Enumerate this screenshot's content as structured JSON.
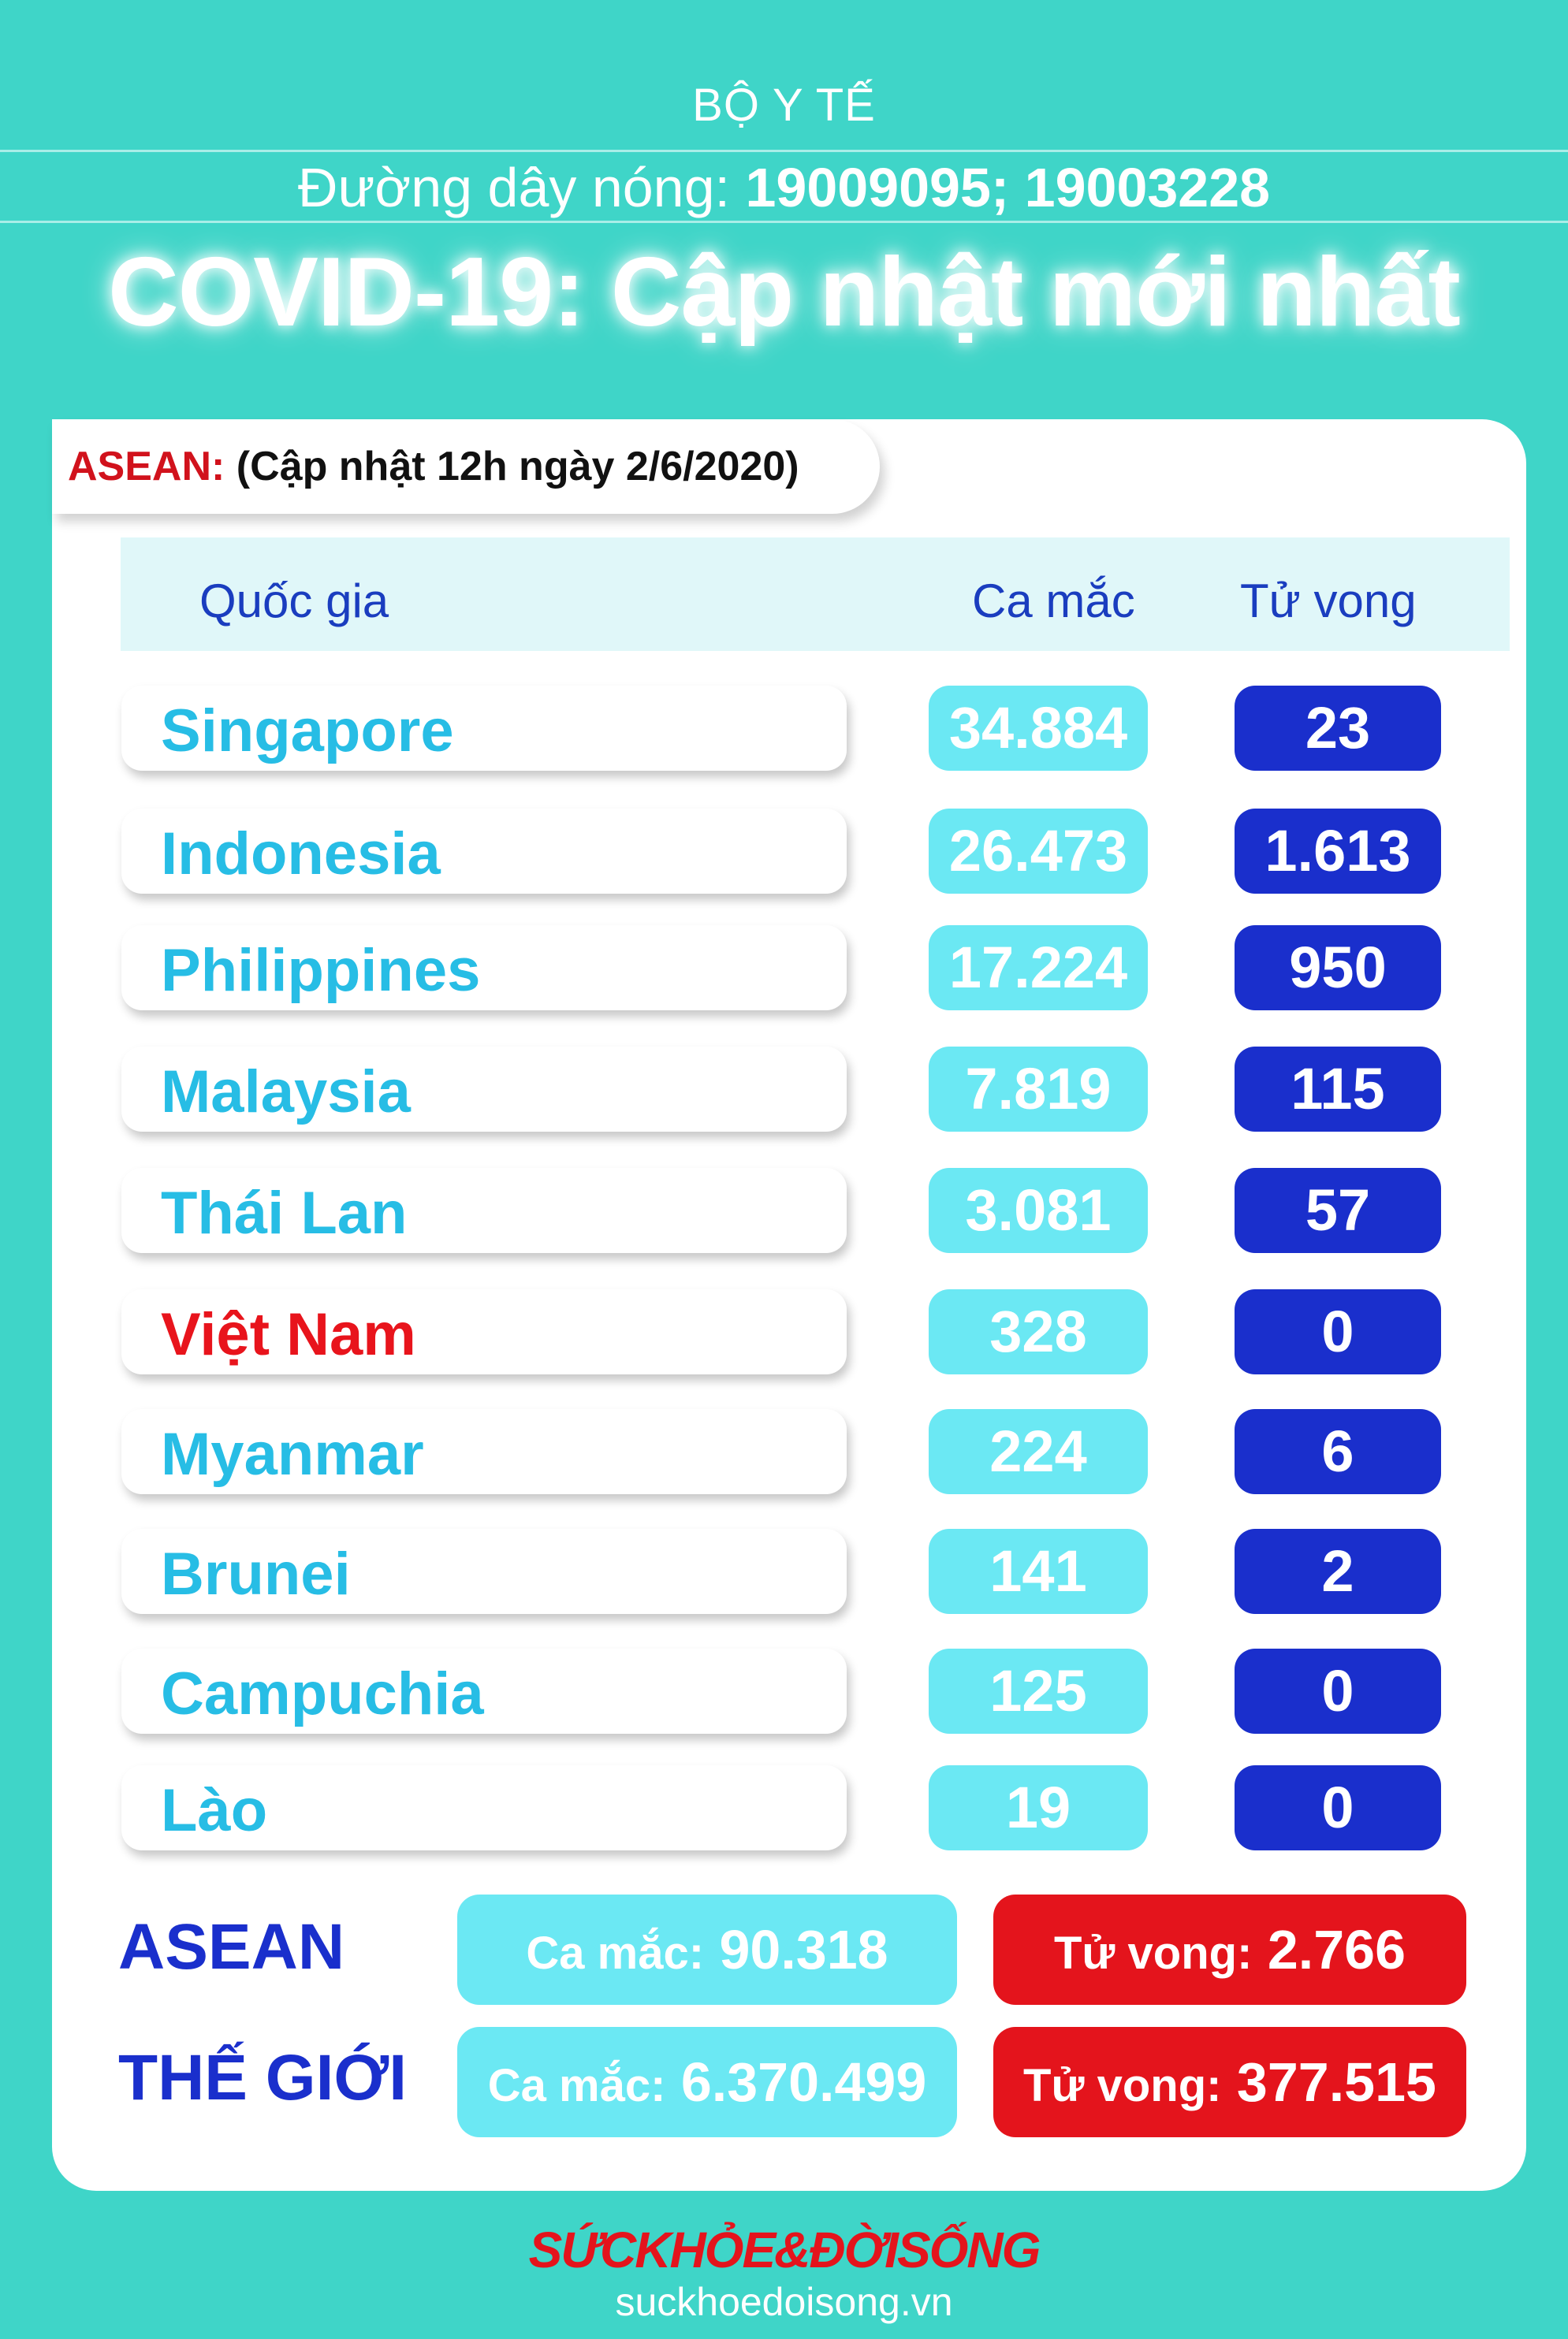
{
  "header": {
    "agency": "BỘ Y TẾ",
    "hotline_label": "Đường dây nóng:",
    "hotline_numbers": "19009095; 19003228",
    "title": "COVID-19: Cập nhật mới nhất"
  },
  "update": {
    "region": "ASEAN:",
    "text": "(Cập nhật 12h ngày 2/6/2020)"
  },
  "table": {
    "headers": {
      "country": "Quốc gia",
      "cases": "Ca mắc",
      "deaths": "Tử vong"
    },
    "rows": [
      {
        "country": "Singapore",
        "cases": "34.884",
        "deaths": "23"
      },
      {
        "country": "Indonesia",
        "cases": "26.473",
        "deaths": "1.613"
      },
      {
        "country": "Philippines",
        "cases": "17.224",
        "deaths": "950"
      },
      {
        "country": "Malaysia",
        "cases": "7.819",
        "deaths": "115"
      },
      {
        "country": "Thái Lan",
        "cases": "3.081",
        "deaths": "57"
      },
      {
        "country": "Việt Nam",
        "cases": "328",
        "deaths": "0",
        "highlight": "#e8141c"
      },
      {
        "country": "Myanmar",
        "cases": "224",
        "deaths": "6"
      },
      {
        "country": "Brunei",
        "cases": "141",
        "deaths": "2"
      },
      {
        "country": "Campuchia",
        "cases": "125",
        "deaths": "0"
      },
      {
        "country": "Lào",
        "cases": "19",
        "deaths": "0"
      }
    ]
  },
  "summary": {
    "asean": {
      "label": "ASEAN",
      "cases_prefix": "Ca mắc:",
      "cases": "90.318",
      "deaths_prefix": "Tử vong:",
      "deaths": "2.766"
    },
    "world": {
      "label": "THẾ GIỚI",
      "cases_prefix": "Ca mắc:",
      "cases": "6.370.499",
      "deaths_prefix": "Tử vong:",
      "deaths": "377.515"
    }
  },
  "brand": {
    "logo": "SỨCKHỎE&ĐỜISỐNG",
    "url": "suckhoedoisong.vn"
  },
  "colors": {
    "background": "#3fd5c8",
    "country_text": "#27bde5",
    "cases_box": "#6be8f3",
    "deaths_box": "#1a2fcc",
    "summary_deaths": "#e4141c"
  }
}
